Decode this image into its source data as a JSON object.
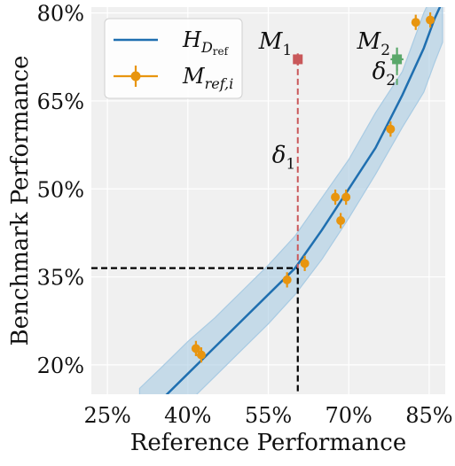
{
  "chart_data": {
    "type": "scatter",
    "xlabel": "Reference Performance",
    "ylabel": "Benchmark Performance",
    "xlim": [
      0.22,
      0.88
    ],
    "ylim": [
      0.15,
      0.81
    ],
    "x_ticks": [
      0.25,
      0.4,
      0.55,
      0.7,
      0.85
    ],
    "x_tick_labels": [
      "25%",
      "40%",
      "55%",
      "70%",
      "85%"
    ],
    "y_ticks": [
      0.2,
      0.35,
      0.5,
      0.65,
      0.8
    ],
    "y_tick_labels": [
      "20%",
      "35%",
      "50%",
      "65%",
      "80%"
    ],
    "grid": true,
    "legend_position": "top-left",
    "colors": {
      "fit": "#1f6fb0",
      "band": "#a9cbe3",
      "ref_points": "#e8950f",
      "m1": "#c9585a",
      "m2": "#5aa86a",
      "background": "#f0f0f0"
    },
    "fit_curve": {
      "name_main": "H",
      "name_sub": "D",
      "name_subsub": "ref",
      "x": [
        0.31,
        0.35,
        0.4,
        0.45,
        0.5,
        0.55,
        0.6,
        0.65,
        0.7,
        0.75,
        0.8,
        0.84,
        0.86,
        0.875
      ],
      "y": [
        0.1,
        0.14,
        0.185,
        0.23,
        0.275,
        0.32,
        0.365,
        0.43,
        0.5,
        0.57,
        0.66,
        0.74,
        0.79,
        0.82
      ],
      "band_lower": [
        0.05,
        0.09,
        0.135,
        0.18,
        0.225,
        0.27,
        0.32,
        0.38,
        0.45,
        0.525,
        0.605,
        0.665,
        0.715,
        0.75
      ],
      "band_upper": [
        0.16,
        0.195,
        0.24,
        0.28,
        0.325,
        0.37,
        0.42,
        0.485,
        0.55,
        0.63,
        0.7,
        0.8,
        0.84,
        0.86
      ]
    },
    "reference_points": {
      "name_main": "M",
      "name_sub": "ref,i",
      "points": [
        {
          "x": 0.415,
          "y": 0.228,
          "xerr": 0.006,
          "yerr": 0.013
        },
        {
          "x": 0.425,
          "y": 0.217,
          "xerr": 0.006,
          "yerr": 0.013
        },
        {
          "x": 0.585,
          "y": 0.345,
          "xerr": 0.006,
          "yerr": 0.013
        },
        {
          "x": 0.618,
          "y": 0.373,
          "xerr": 0.006,
          "yerr": 0.013
        },
        {
          "x": 0.675,
          "y": 0.486,
          "xerr": 0.006,
          "yerr": 0.013
        },
        {
          "x": 0.695,
          "y": 0.486,
          "xerr": 0.006,
          "yerr": 0.013
        },
        {
          "x": 0.685,
          "y": 0.446,
          "xerr": 0.006,
          "yerr": 0.013
        },
        {
          "x": 0.778,
          "y": 0.602,
          "xerr": 0.006,
          "yerr": 0.013
        },
        {
          "x": 0.825,
          "y": 0.784,
          "xerr": 0.006,
          "yerr": 0.013
        },
        {
          "x": 0.852,
          "y": 0.788,
          "xerr": 0.006,
          "yerr": 0.013
        }
      ]
    },
    "m1": {
      "label_main": "M",
      "label_sub": "1",
      "x": 0.605,
      "y": 0.721,
      "xerr": 0.008,
      "yerr": 0.01
    },
    "m2": {
      "label_main": "M",
      "label_sub": "2",
      "x": 0.79,
      "y": 0.721,
      "xerr": 0.012,
      "yerr": 0.02
    },
    "delta1": {
      "label_main": "δ",
      "label_sub": "1",
      "from_y": 0.721,
      "to_y": 0.365,
      "x": 0.605
    },
    "delta2": {
      "label_main": "δ",
      "label_sub": "2",
      "from_y": 0.721,
      "to_y": 0.672,
      "x": 0.79
    },
    "projection": {
      "x": 0.605,
      "y": 0.365
    }
  }
}
